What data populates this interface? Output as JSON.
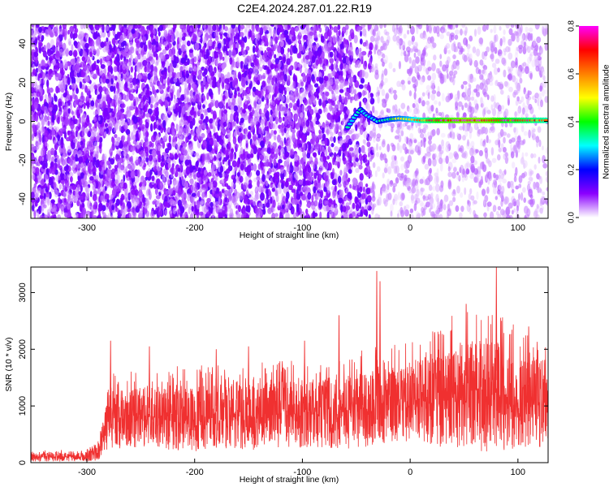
{
  "title": "C2E4.2024.287.01.22.R19",
  "chart_data": [
    {
      "type": "heatmap",
      "xlabel": "Height of straight line (km)",
      "ylabel": "Frequency (Hz)",
      "xlim": [
        -352,
        128
      ],
      "ylim": [
        -50,
        50
      ],
      "xticks": [
        -300,
        -200,
        -100,
        0,
        100
      ],
      "yticks": [
        -40,
        -20,
        0,
        20,
        40
      ],
      "xtick_labels": [
        "-300",
        "-200",
        "-100",
        "0",
        "100"
      ],
      "ytick_labels": [
        "-40",
        "-20",
        "0",
        "20",
        "40"
      ],
      "colorbar": {
        "label": "Normalized spectral amplitude",
        "range": [
          0,
          0.8
        ],
        "ticks": [
          0,
          0.2,
          0.4,
          0.6,
          0.8
        ],
        "tick_labels": [
          "0.0",
          "0.2",
          "0.4",
          "0.6",
          "0.8"
        ],
        "colors": [
          "#ffffff",
          "#8b00ff",
          "#0000ff",
          "#00ffff",
          "#00ff00",
          "#ffff00",
          "#ff8000",
          "#ff0000",
          "#ff00ff"
        ]
      },
      "noise_bands": [
        {
          "x": [
            -352,
            -55
          ],
          "amplitude": 0.1,
          "density": 0.85
        },
        {
          "x": [
            -55,
            -35
          ],
          "amplitude": 0.1,
          "density": 0.5
        },
        {
          "x": [
            -35,
            128
          ],
          "amplitude": 0.05,
          "density": 0.35
        }
      ],
      "signal_track": [
        {
          "x": -58,
          "f": -3,
          "amplitude": 0.3
        },
        {
          "x": -52,
          "f": 2,
          "amplitude": 0.3
        },
        {
          "x": -46,
          "f": 6,
          "amplitude": 0.35
        },
        {
          "x": -40,
          "f": 3,
          "amplitude": 0.3
        },
        {
          "x": -30,
          "f": 0,
          "amplitude": 0.35
        },
        {
          "x": -20,
          "f": 1,
          "amplitude": 0.4
        },
        {
          "x": -10,
          "f": 1.5,
          "amplitude": 0.45
        },
        {
          "x": 0,
          "f": 1,
          "amplitude": 0.5
        },
        {
          "x": 10,
          "f": 0.5,
          "amplitude": 0.6
        },
        {
          "x": 30,
          "f": 0.5,
          "amplitude": 0.75
        },
        {
          "x": 50,
          "f": 0.5,
          "amplitude": 0.8
        },
        {
          "x": 70,
          "f": 0.5,
          "amplitude": 0.8
        },
        {
          "x": 90,
          "f": 0.5,
          "amplitude": 0.7
        },
        {
          "x": 110,
          "f": 0.5,
          "amplitude": 0.65
        },
        {
          "x": 128,
          "f": 0.5,
          "amplitude": 0.6
        }
      ]
    },
    {
      "type": "line",
      "xlabel": "Height of straight line (km)",
      "ylabel": "SNR (10 * v/v)",
      "xlim": [
        -352,
        128
      ],
      "ylim": [
        0,
        3450
      ],
      "xticks": [
        -300,
        -200,
        -100,
        0,
        100
      ],
      "yticks": [
        0,
        1000,
        2000,
        3000
      ],
      "xtick_labels": [
        "-300",
        "-200",
        "-100",
        "0",
        "100"
      ],
      "ytick_labels": [
        "0",
        "1000",
        "2000",
        "3000"
      ],
      "color": "#f03030",
      "envelope": {
        "x": [
          -352,
          -300,
          -290,
          -285,
          -280,
          -250,
          -200,
          -150,
          -100,
          -50,
          -20,
          0,
          20,
          40,
          60,
          80,
          100,
          128
        ],
        "lower": [
          20,
          20,
          40,
          100,
          250,
          250,
          200,
          220,
          260,
          240,
          320,
          380,
          300,
          250,
          200,
          150,
          220,
          250
        ],
        "upper": [
          200,
          230,
          350,
          900,
          1500,
          1600,
          1650,
          1700,
          1750,
          1900,
          2000,
          2050,
          2400,
          2500,
          2600,
          2700,
          2300,
          2200
        ]
      },
      "spikes": [
        {
          "x": -278,
          "y": 2150
        },
        {
          "x": -242,
          "y": 2050
        },
        {
          "x": -180,
          "y": 2000
        },
        {
          "x": -150,
          "y": 2050
        },
        {
          "x": -98,
          "y": 2150
        },
        {
          "x": -66,
          "y": 2600
        },
        {
          "x": -31,
          "y": 3380
        },
        {
          "x": -28,
          "y": 3200
        },
        {
          "x": 52,
          "y": 2800
        },
        {
          "x": 80,
          "y": 3450
        },
        {
          "x": 110,
          "y": 2400
        }
      ]
    }
  ]
}
